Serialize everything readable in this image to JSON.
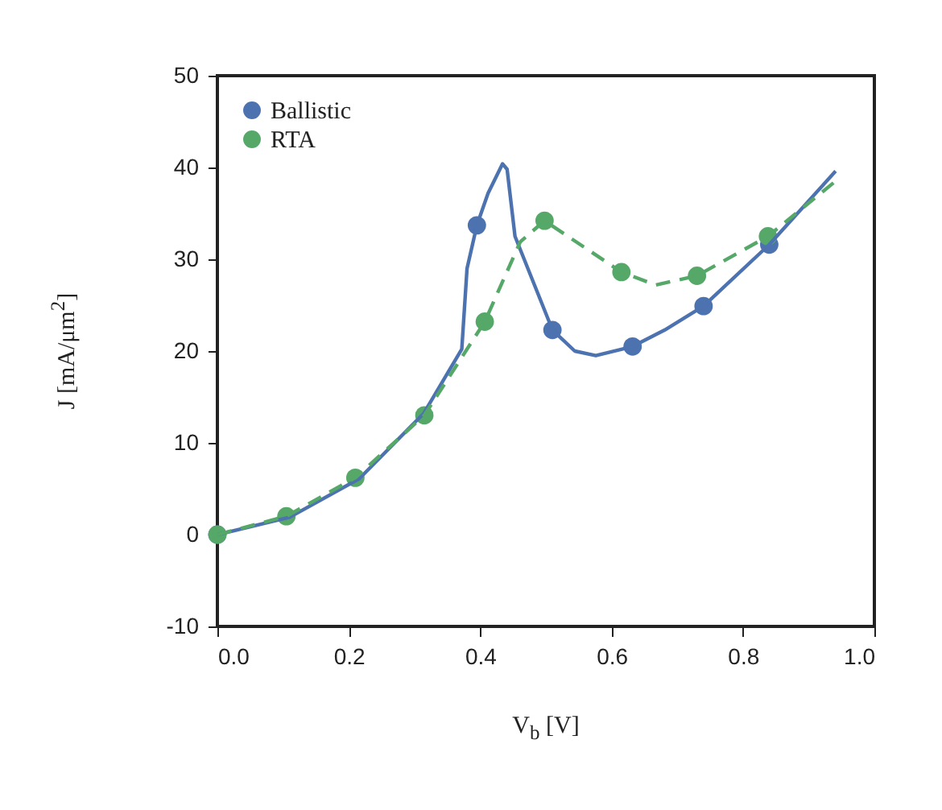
{
  "chart_data": {
    "type": "line",
    "xlabel": "V$_{b}$ [V]",
    "ylabel": "J [mA/μm$^{2}$]",
    "xlim": [
      0,
      1
    ],
    "ylim": [
      -10,
      50
    ],
    "xticks": [
      {
        "value": 0,
        "label": "0.0"
      },
      {
        "value": 0.2,
        "label": "0.2"
      },
      {
        "value": 0.4,
        "label": "0.4"
      },
      {
        "value": 0.6,
        "label": "0.6"
      },
      {
        "value": 0.8,
        "label": "0.8"
      },
      {
        "value": 1,
        "label": "1.0"
      }
    ],
    "yticks": [
      -10,
      0,
      10,
      20,
      30,
      40,
      50
    ],
    "grid": false,
    "legend": "top left",
    "series": [
      {
        "name": "Ballistic",
        "type": "scatter",
        "marker": "circle",
        "color": "#4c72b0",
        "x": [
          0,
          0.105,
          0.21,
          0.315,
          0.395,
          0.51,
          0.632,
          0.74,
          0.84
        ],
        "values": [
          0,
          null,
          null,
          null,
          33.7,
          22.3,
          20.5,
          24.9,
          31.6
        ]
      },
      {
        "name": "RTA",
        "type": "scatter",
        "marker": "circle",
        "color": "#55a868",
        "x": [
          0,
          0.105,
          0.21,
          0.315,
          0.407,
          0.498,
          0.615,
          0.73,
          0.838
        ],
        "values": [
          0,
          2,
          6.2,
          13,
          23.2,
          34.2,
          28.6,
          28.2,
          32.5
        ]
      },
      {
        "type": "line",
        "line_style": "solid",
        "color": "#4c72b0",
        "x": [
          0,
          0.11,
          0.216,
          0.314,
          0.372,
          0.38,
          0.395,
          0.412,
          0.434,
          0.441,
          0.453,
          0.51,
          0.544,
          0.576,
          0.632,
          0.681,
          0.74,
          0.84,
          0.941
        ],
        "values": [
          0,
          1.9,
          6.1,
          13.2,
          20.2,
          29,
          33.7,
          37.2,
          40.4,
          39.8,
          32.5,
          22.3,
          20,
          19.5,
          20.5,
          22.3,
          24.9,
          31.6,
          39.6
        ]
      },
      {
        "type": "line",
        "line_style": "dashed",
        "color": "#55a868",
        "x": [
          0,
          0.105,
          0.21,
          0.315,
          0.407,
          0.461,
          0.498,
          0.615,
          0.667,
          0.73,
          0.838,
          0.939
        ],
        "values": [
          0,
          2,
          6.2,
          13,
          23.2,
          31.9,
          34.2,
          28.6,
          27.2,
          28.2,
          32.5,
          38.4
        ]
      }
    ]
  }
}
